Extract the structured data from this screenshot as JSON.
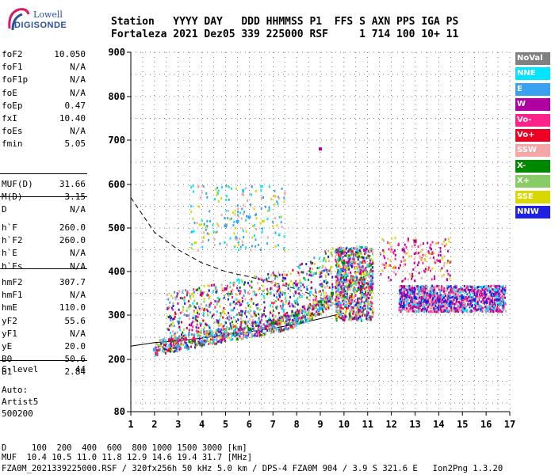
{
  "logo": {
    "line1": "Lowell",
    "line2": "DIGISONDE"
  },
  "header": {
    "row1": "Station   YYYY DAY   DDD HHMMSS P1  FFS S AXN PPS IGA PS",
    "row2": "Fortaleza 2021 Dez05 339 225000 RSF     1 714 100 10+ 11"
  },
  "params_group1": [
    {
      "name": "foF2",
      "value": "10.050"
    },
    {
      "name": "foF1",
      "value": "N/A"
    },
    {
      "name": "foF1p",
      "value": "N/A"
    },
    {
      "name": "foE",
      "value": "N/A"
    },
    {
      "name": "foEp",
      "value": "0.47"
    },
    {
      "name": "fxI",
      "value": "10.40"
    },
    {
      "name": "foEs",
      "value": "N/A"
    },
    {
      "name": "fmin",
      "value": "5.05"
    }
  ],
  "params_group2": [
    {
      "name": "MUF(D)",
      "value": "31.66"
    },
    {
      "name": "M(D)",
      "value": "3.15"
    },
    {
      "name": "D",
      "value": "N/A"
    }
  ],
  "params_group3": [
    {
      "name": "h`F",
      "value": "260.0"
    },
    {
      "name": "h`F2",
      "value": "260.0"
    },
    {
      "name": "h`E",
      "value": "N/A"
    },
    {
      "name": "h`Es",
      "value": "N/A"
    }
  ],
  "params_group4": [
    {
      "name": "hmF2",
      "value": "307.7"
    },
    {
      "name": "hmF1",
      "value": "N/A"
    },
    {
      "name": "hmE",
      "value": "110.0"
    },
    {
      "name": "yF2",
      "value": "55.6"
    },
    {
      "name": "yF1",
      "value": "N/A"
    },
    {
      "name": "yE",
      "value": "20.0"
    },
    {
      "name": "B0",
      "value": "50.6"
    },
    {
      "name": "B1",
      "value": "2.84"
    }
  ],
  "params_group5": [
    {
      "name": "C-level",
      "value": "44"
    }
  ],
  "auto": {
    "line1": "Auto:",
    "line2": "Artist5",
    "line3": "500200"
  },
  "footer": {
    "d_row": "D     100  200  400  600  800 1000 1500 3000 [km]",
    "muf_row": "MUF  10.4 10.5 11.0 11.8 12.9 14.6 19.4 31.7 [MHz]",
    "info": "FZA0M_2021339225000.RSF / 320fx256h 50 kHz 5.0 km / DPS-4 FZA0M 904 / 3.9 S 321.6 E   Ion2Png 1.3.20"
  },
  "legend": [
    {
      "label": "NoVal",
      "color": "#808080"
    },
    {
      "label": "NNE",
      "color": "#00e5ff"
    },
    {
      "label": "E",
      "color": "#3aa0f0"
    },
    {
      "label": "W",
      "color": "#b000a0"
    },
    {
      "label": "Vo-",
      "color": "#ff2288"
    },
    {
      "label": "Vo+",
      "color": "#ee0022"
    },
    {
      "label": "SSW",
      "color": "#f4a6a6"
    },
    {
      "label": "X-",
      "color": "#008800"
    },
    {
      "label": "X+",
      "color": "#88cc66"
    },
    {
      "label": "SSE",
      "color": "#d8d800"
    },
    {
      "label": "NNW",
      "color": "#2020e0"
    }
  ],
  "chart_data": {
    "type": "scatter",
    "x_ticks": [
      "1",
      "2",
      "3",
      "4",
      "5",
      "6",
      "7",
      "8",
      "9",
      "10",
      "11",
      "12",
      "13",
      "14",
      "15",
      "16",
      "17"
    ],
    "y_ticks": [
      "80",
      "200",
      "300",
      "400",
      "500",
      "600",
      "700",
      "800",
      "900"
    ],
    "xlim": [
      1,
      17
    ],
    "ylim": [
      80,
      900
    ],
    "series": [
      {
        "name": "E",
        "points": [
          [
            2.0,
            222
          ],
          [
            3.0,
            230
          ],
          [
            4.0,
            240
          ],
          [
            5.0,
            252
          ],
          [
            6.0,
            262
          ],
          [
            7.0,
            275
          ],
          [
            8.0,
            290
          ],
          [
            9.0,
            315
          ]
        ]
      },
      {
        "name": "NNW",
        "points": [
          [
            12.5,
            320
          ],
          [
            13.0,
            340
          ],
          [
            13.5,
            330
          ],
          [
            14.0,
            335
          ],
          [
            14.5,
            330
          ],
          [
            15.0,
            340
          ],
          [
            15.5,
            335
          ],
          [
            16.0,
            330
          ],
          [
            16.5,
            335
          ]
        ]
      },
      {
        "name": "X-",
        "points": [
          [
            6.0,
            268
          ],
          [
            7.0,
            282
          ],
          [
            8.0,
            300
          ],
          [
            9.0,
            330
          ],
          [
            9.5,
            350
          ]
        ]
      },
      {
        "name": "W",
        "points": [
          [
            4.0,
            350
          ],
          [
            5.0,
            360
          ],
          [
            8.0,
            370
          ],
          [
            9.0,
            680
          ],
          [
            12.5,
            450
          ],
          [
            13.0,
            470
          ]
        ]
      },
      {
        "name": "E",
        "points": [
          [
            5.0,
            505
          ],
          [
            5.5,
            515
          ],
          [
            6.0,
            525
          ]
        ]
      }
    ],
    "trace_curves": [
      {
        "name": "upper",
        "points": [
          [
            1.0,
            570
          ],
          [
            2.0,
            490
          ],
          [
            3.0,
            450
          ],
          [
            4.0,
            420
          ],
          [
            5.0,
            400
          ],
          [
            6.0,
            388
          ],
          [
            7.0,
            375
          ],
          [
            8.0,
            360
          ],
          [
            9.0,
            340
          ],
          [
            10.0,
            315
          ]
        ]
      },
      {
        "name": "lower",
        "points": [
          [
            1.0,
            230
          ],
          [
            2.0,
            238
          ],
          [
            3.0,
            242
          ],
          [
            4.0,
            248
          ],
          [
            5.0,
            256
          ],
          [
            6.0,
            262
          ],
          [
            7.0,
            270
          ],
          [
            8.0,
            280
          ],
          [
            9.0,
            292
          ],
          [
            10.0,
            305
          ]
        ]
      }
    ]
  }
}
